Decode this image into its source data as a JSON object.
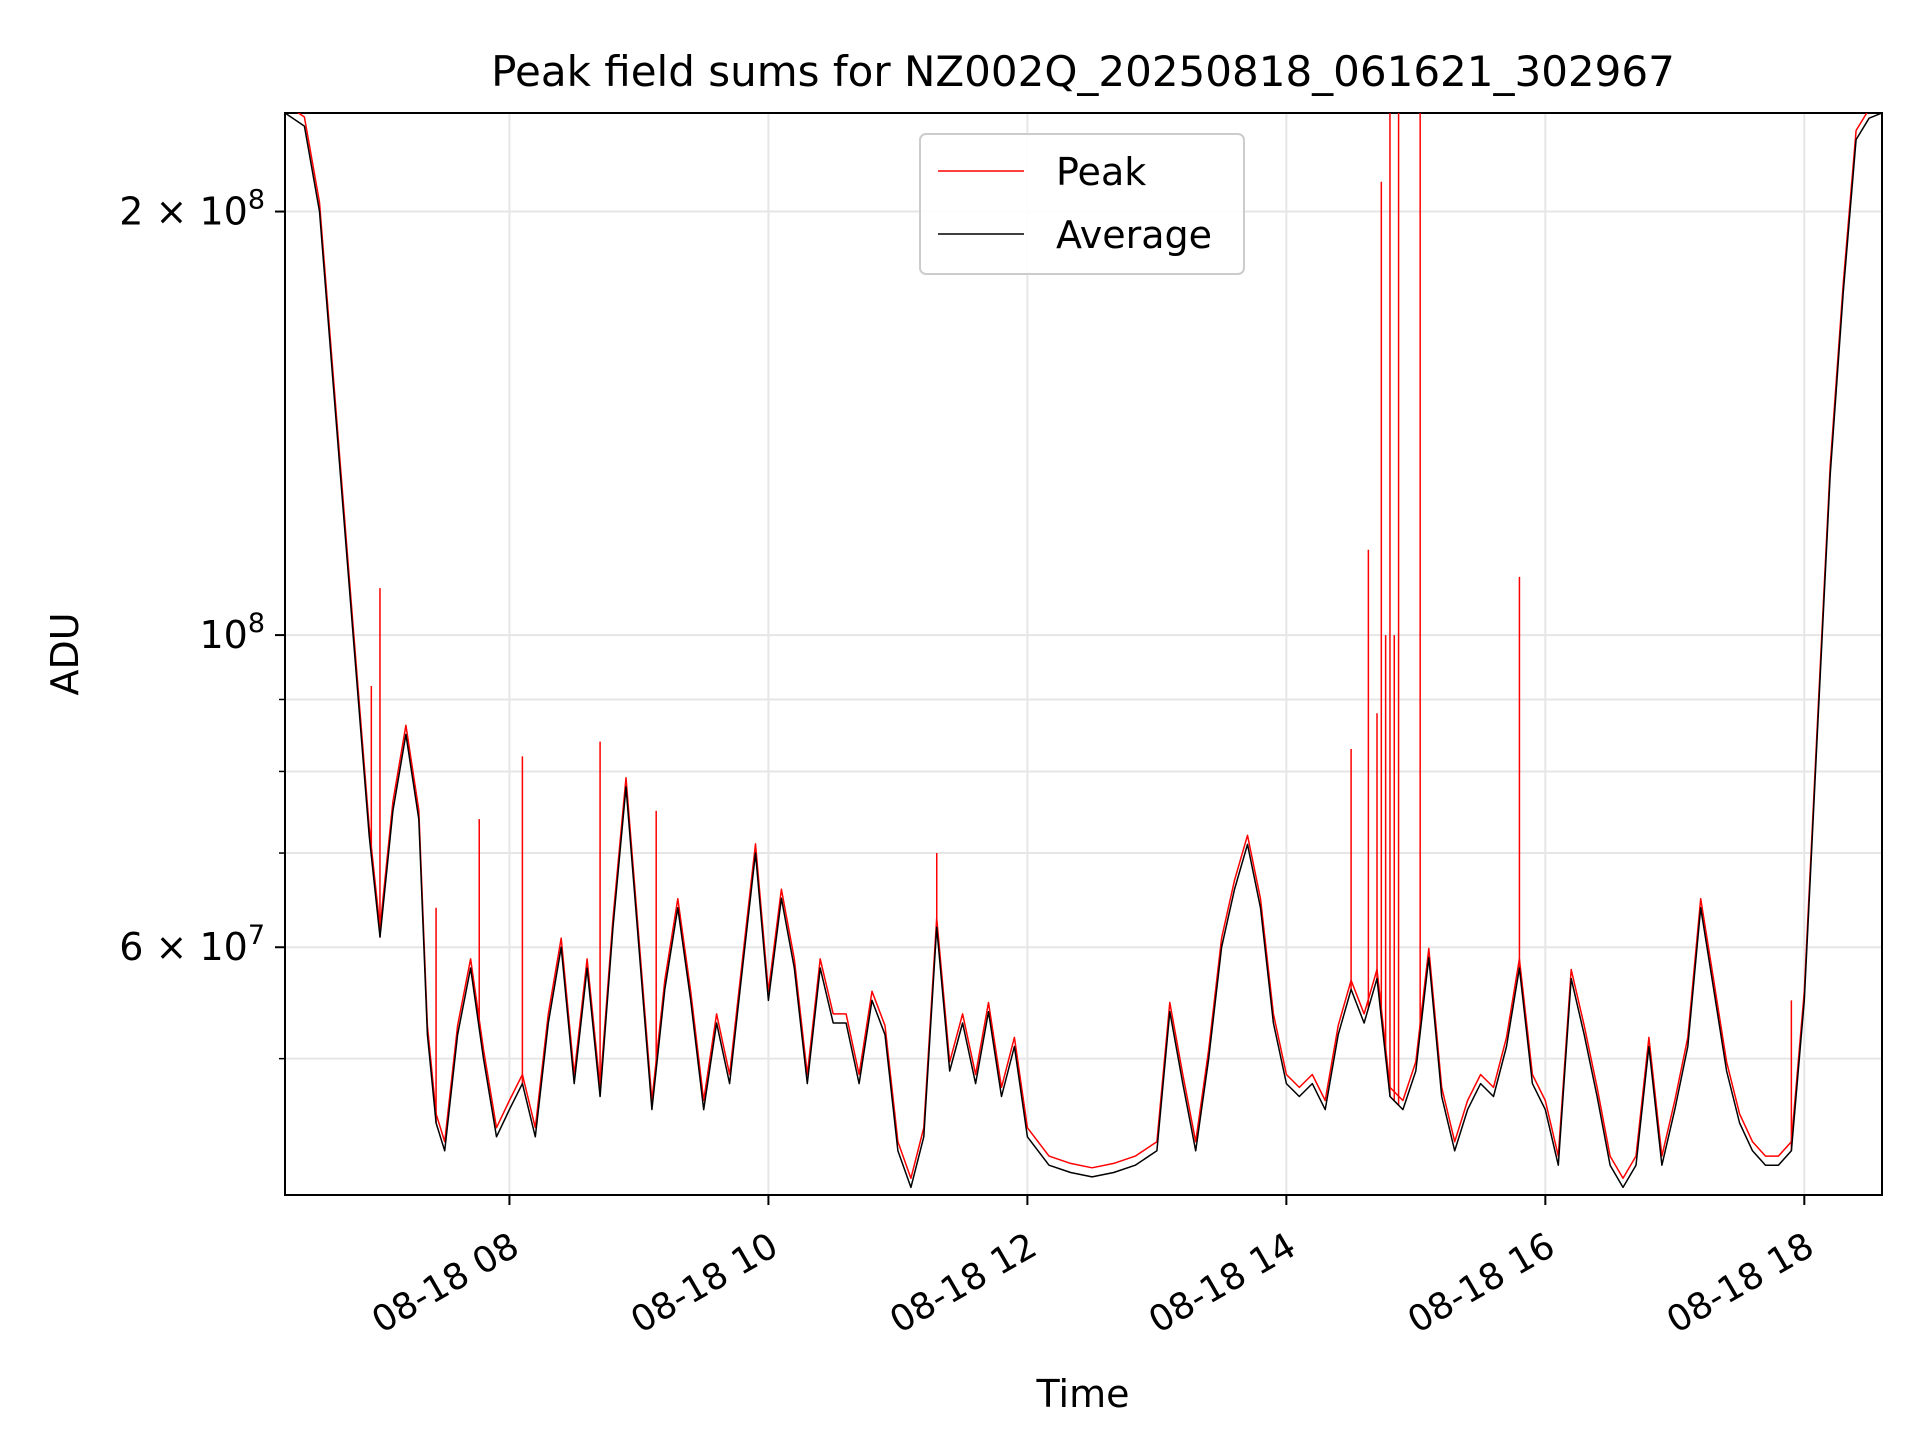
{
  "chart_data": {
    "type": "line",
    "title": "Peak field sums for NZ002Q_20250818_061621_302967",
    "xlabel": "Time",
    "ylabel": "ADU",
    "yscale": "log",
    "ylim": [
      40000000,
      235000000
    ],
    "xlim": [
      "2025-08-18 06:16",
      "2025-08-18 18:36"
    ],
    "grid": true,
    "legend_position": "upper center",
    "x_ticks": [
      {
        "x": "2025-08-18 08:00",
        "label": "08-18 08"
      },
      {
        "x": "2025-08-18 10:00",
        "label": "08-18 10"
      },
      {
        "x": "2025-08-18 12:00",
        "label": "08-18 12"
      },
      {
        "x": "2025-08-18 14:00",
        "label": "08-18 14"
      },
      {
        "x": "2025-08-18 16:00",
        "label": "08-18 16"
      },
      {
        "x": "2025-08-18 18:00",
        "label": "08-18 18"
      }
    ],
    "y_ticks": [
      {
        "value": 60000000,
        "base": "6 × 10",
        "exp": "7"
      },
      {
        "value": 100000000,
        "base": "10",
        "exp": "8"
      },
      {
        "value": 200000000,
        "base": "2 × 10",
        "exp": "8"
      }
    ],
    "y_minor_ticks": [
      50000000,
      70000000,
      80000000,
      90000000
    ],
    "series": [
      {
        "name": "Average",
        "color": "#000000",
        "points": [
          [
            "2025-08-18 06:16",
            235000000
          ],
          [
            "2025-08-18 06:25",
            230000000
          ],
          [
            "2025-08-18 06:32",
            200000000
          ],
          [
            "2025-08-18 06:40",
            140000000
          ],
          [
            "2025-08-18 06:48",
            98000000
          ],
          [
            "2025-08-18 06:55",
            72000000
          ],
          [
            "2025-08-18 07:00",
            61000000
          ],
          [
            "2025-08-18 07:06",
            75000000
          ],
          [
            "2025-08-18 07:12",
            85000000
          ],
          [
            "2025-08-18 07:18",
            74000000
          ],
          [
            "2025-08-18 07:22",
            52000000
          ],
          [
            "2025-08-18 07:26",
            45000000
          ],
          [
            "2025-08-18 07:30",
            43000000
          ],
          [
            "2025-08-18 07:36",
            52000000
          ],
          [
            "2025-08-18 07:42",
            58000000
          ],
          [
            "2025-08-18 07:48",
            50000000
          ],
          [
            "2025-08-18 07:54",
            44000000
          ],
          [
            "2025-08-18 08:00",
            46000000
          ],
          [
            "2025-08-18 08:06",
            48000000
          ],
          [
            "2025-08-18 08:12",
            44000000
          ],
          [
            "2025-08-18 08:18",
            53000000
          ],
          [
            "2025-08-18 08:24",
            60000000
          ],
          [
            "2025-08-18 08:30",
            48000000
          ],
          [
            "2025-08-18 08:36",
            58000000
          ],
          [
            "2025-08-18 08:42",
            47000000
          ],
          [
            "2025-08-18 08:48",
            62000000
          ],
          [
            "2025-08-18 08:54",
            78000000
          ],
          [
            "2025-08-18 09:00",
            60000000
          ],
          [
            "2025-08-18 09:06",
            46000000
          ],
          [
            "2025-08-18 09:12",
            56000000
          ],
          [
            "2025-08-18 09:18",
            64000000
          ],
          [
            "2025-08-18 09:24",
            55000000
          ],
          [
            "2025-08-18 09:30",
            46000000
          ],
          [
            "2025-08-18 09:36",
            53000000
          ],
          [
            "2025-08-18 09:42",
            48000000
          ],
          [
            "2025-08-18 09:48",
            58000000
          ],
          [
            "2025-08-18 09:54",
            70000000
          ],
          [
            "2025-08-18 10:00",
            55000000
          ],
          [
            "2025-08-18 10:06",
            65000000
          ],
          [
            "2025-08-18 10:12",
            58000000
          ],
          [
            "2025-08-18 10:18",
            48000000
          ],
          [
            "2025-08-18 10:24",
            58000000
          ],
          [
            "2025-08-18 10:30",
            53000000
          ],
          [
            "2025-08-18 10:36",
            53000000
          ],
          [
            "2025-08-18 10:42",
            48000000
          ],
          [
            "2025-08-18 10:48",
            55000000
          ],
          [
            "2025-08-18 10:54",
            52000000
          ],
          [
            "2025-08-18 11:00",
            43000000
          ],
          [
            "2025-08-18 11:06",
            40500000
          ],
          [
            "2025-08-18 11:12",
            44000000
          ],
          [
            "2025-08-18 11:18",
            62000000
          ],
          [
            "2025-08-18 11:24",
            49000000
          ],
          [
            "2025-08-18 11:30",
            53000000
          ],
          [
            "2025-08-18 11:36",
            48000000
          ],
          [
            "2025-08-18 11:42",
            54000000
          ],
          [
            "2025-08-18 11:48",
            47000000
          ],
          [
            "2025-08-18 11:54",
            51000000
          ],
          [
            "2025-08-18 12:00",
            44000000
          ],
          [
            "2025-08-18 12:10",
            42000000
          ],
          [
            "2025-08-18 12:20",
            41500000
          ],
          [
            "2025-08-18 12:30",
            41200000
          ],
          [
            "2025-08-18 12:40",
            41500000
          ],
          [
            "2025-08-18 12:50",
            42000000
          ],
          [
            "2025-08-18 13:00",
            43000000
          ],
          [
            "2025-08-18 13:06",
            54000000
          ],
          [
            "2025-08-18 13:12",
            48000000
          ],
          [
            "2025-08-18 13:18",
            43000000
          ],
          [
            "2025-08-18 13:24",
            50000000
          ],
          [
            "2025-08-18 13:30",
            60000000
          ],
          [
            "2025-08-18 13:36",
            66000000
          ],
          [
            "2025-08-18 13:42",
            71000000
          ],
          [
            "2025-08-18 13:48",
            64000000
          ],
          [
            "2025-08-18 13:54",
            53000000
          ],
          [
            "2025-08-18 14:00",
            48000000
          ],
          [
            "2025-08-18 14:06",
            47000000
          ],
          [
            "2025-08-18 14:12",
            48000000
          ],
          [
            "2025-08-18 14:18",
            46000000
          ],
          [
            "2025-08-18 14:24",
            52000000
          ],
          [
            "2025-08-18 14:30",
            56000000
          ],
          [
            "2025-08-18 14:36",
            53000000
          ],
          [
            "2025-08-18 14:42",
            57000000
          ],
          [
            "2025-08-18 14:48",
            47000000
          ],
          [
            "2025-08-18 14:54",
            46000000
          ],
          [
            "2025-08-18 15:00",
            49000000
          ],
          [
            "2025-08-18 15:06",
            59000000
          ],
          [
            "2025-08-18 15:12",
            47000000
          ],
          [
            "2025-08-18 15:18",
            43000000
          ],
          [
            "2025-08-18 15:24",
            46000000
          ],
          [
            "2025-08-18 15:30",
            48000000
          ],
          [
            "2025-08-18 15:36",
            47000000
          ],
          [
            "2025-08-18 15:42",
            51000000
          ],
          [
            "2025-08-18 15:48",
            58000000
          ],
          [
            "2025-08-18 15:54",
            48000000
          ],
          [
            "2025-08-18 16:00",
            46000000
          ],
          [
            "2025-08-18 16:06",
            42000000
          ],
          [
            "2025-08-18 16:12",
            57000000
          ],
          [
            "2025-08-18 16:18",
            52000000
          ],
          [
            "2025-08-18 16:24",
            47000000
          ],
          [
            "2025-08-18 16:30",
            42000000
          ],
          [
            "2025-08-18 16:36",
            40500000
          ],
          [
            "2025-08-18 16:42",
            42000000
          ],
          [
            "2025-08-18 16:48",
            51000000
          ],
          [
            "2025-08-18 16:54",
            42000000
          ],
          [
            "2025-08-18 17:00",
            46000000
          ],
          [
            "2025-08-18 17:06",
            51000000
          ],
          [
            "2025-08-18 17:12",
            64000000
          ],
          [
            "2025-08-18 17:18",
            56000000
          ],
          [
            "2025-08-18 17:24",
            49000000
          ],
          [
            "2025-08-18 17:30",
            45000000
          ],
          [
            "2025-08-18 17:36",
            43000000
          ],
          [
            "2025-08-18 17:42",
            42000000
          ],
          [
            "2025-08-18 17:48",
            42000000
          ],
          [
            "2025-08-18 17:54",
            43000000
          ],
          [
            "2025-08-18 18:00",
            55000000
          ],
          [
            "2025-08-18 18:06",
            85000000
          ],
          [
            "2025-08-18 18:12",
            130000000
          ],
          [
            "2025-08-18 18:18",
            175000000
          ],
          [
            "2025-08-18 18:24",
            225000000
          ],
          [
            "2025-08-18 18:30",
            233000000
          ],
          [
            "2025-08-18 18:36",
            235000000
          ]
        ]
      },
      {
        "name": "Peak",
        "color": "#ff0000",
        "spikes": [
          [
            "2025-08-18 06:56",
            92000000
          ],
          [
            "2025-08-18 07:00",
            108000000
          ],
          [
            "2025-08-18 07:26",
            64000000
          ],
          [
            "2025-08-18 07:46",
            74000000
          ],
          [
            "2025-08-18 08:06",
            82000000
          ],
          [
            "2025-08-18 08:42",
            84000000
          ],
          [
            "2025-08-18 09:08",
            75000000
          ],
          [
            "2025-08-18 11:18",
            70000000
          ],
          [
            "2025-08-18 14:30",
            83000000
          ],
          [
            "2025-08-18 14:38",
            115000000
          ],
          [
            "2025-08-18 14:42",
            88000000
          ],
          [
            "2025-08-18 14:44",
            210000000
          ],
          [
            "2025-08-18 14:46",
            100000000
          ],
          [
            "2025-08-18 14:48",
            235000000
          ],
          [
            "2025-08-18 14:50",
            100000000
          ],
          [
            "2025-08-18 14:52",
            235000000
          ],
          [
            "2025-08-18 15:02",
            235000000
          ],
          [
            "2025-08-18 15:48",
            110000000
          ],
          [
            "2025-08-18 17:54",
            55000000
          ]
        ]
      }
    ]
  }
}
